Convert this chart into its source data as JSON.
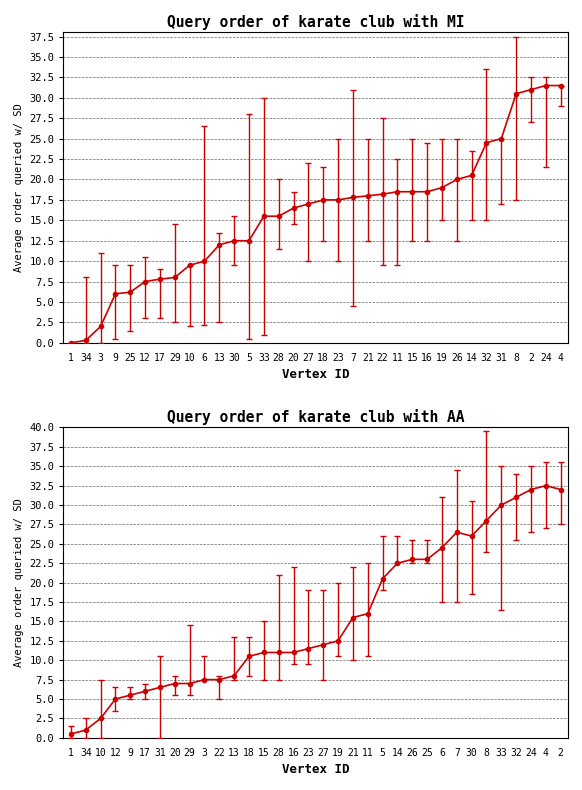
{
  "title1": "Query order of karate club with MI",
  "title2": "Query order of karate club with AA",
  "xlabel": "Vertex ID",
  "ylabel": "Average order queried w/ SD",
  "mi_labels": [
    "1",
    "34",
    "3",
    "9",
    "25",
    "12",
    "17",
    "29",
    "10",
    "6",
    "13",
    "30",
    "5",
    "33",
    "28",
    "20",
    "27",
    "18",
    "23",
    "7",
    "21",
    "22",
    "11",
    "15",
    "16",
    "19",
    "26",
    "14",
    "32",
    "31",
    "8",
    "2",
    "24",
    "4"
  ],
  "mi_means": [
    0.0,
    0.3,
    2.0,
    6.0,
    6.2,
    7.5,
    7.8,
    8.0,
    9.5,
    10.0,
    12.0,
    12.5,
    12.5,
    15.5,
    15.5,
    16.5,
    17.0,
    17.5,
    17.5,
    17.8,
    18.0,
    18.2,
    18.5,
    18.5,
    18.5,
    19.0,
    20.0,
    20.5,
    24.5,
    25.0,
    30.5,
    31.0,
    31.5,
    31.5
  ],
  "mi_lo": [
    0.0,
    0.0,
    0.0,
    0.5,
    1.5,
    3.0,
    3.0,
    2.5,
    2.0,
    2.2,
    2.5,
    9.5,
    0.5,
    1.0,
    11.5,
    14.5,
    10.0,
    12.5,
    10.0,
    4.5,
    12.5,
    9.5,
    9.5,
    12.5,
    12.5,
    15.0,
    12.5,
    15.0,
    15.0,
    17.0,
    17.5,
    27.0,
    21.5,
    29.0
  ],
  "mi_hi": [
    0.0,
    8.0,
    11.0,
    9.5,
    9.5,
    10.5,
    9.0,
    14.5,
    9.5,
    26.5,
    13.5,
    15.5,
    28.0,
    30.0,
    20.0,
    18.5,
    22.0,
    21.5,
    25.0,
    31.0,
    25.0,
    27.5,
    22.5,
    25.0,
    24.5,
    25.0,
    25.0,
    23.5,
    33.5,
    25.0,
    37.5,
    32.5,
    32.5,
    31.5
  ],
  "aa_labels": [
    "1",
    "34",
    "10",
    "12",
    "9",
    "17",
    "31",
    "20",
    "29",
    "3",
    "22",
    "13",
    "18",
    "15",
    "28",
    "16",
    "23",
    "27",
    "19",
    "21",
    "11",
    "5",
    "14",
    "26",
    "25",
    "6",
    "7",
    "30",
    "8",
    "33",
    "32",
    "24",
    "4",
    "2"
  ],
  "aa_means": [
    0.5,
    1.0,
    2.5,
    5.0,
    5.5,
    6.0,
    6.5,
    7.0,
    7.0,
    7.5,
    7.5,
    8.0,
    10.5,
    11.0,
    11.0,
    11.0,
    11.5,
    12.0,
    12.5,
    15.5,
    16.0,
    20.5,
    22.5,
    23.0,
    23.0,
    24.5,
    26.5,
    26.0,
    28.0,
    30.0,
    31.0,
    32.0,
    32.5,
    32.0
  ],
  "aa_lo": [
    0.0,
    0.0,
    0.0,
    3.5,
    5.0,
    5.0,
    0.0,
    5.5,
    5.5,
    7.5,
    5.0,
    7.5,
    8.0,
    7.5,
    7.5,
    9.5,
    9.5,
    7.5,
    10.5,
    10.0,
    10.5,
    19.0,
    22.5,
    22.5,
    22.5,
    17.5,
    17.5,
    18.5,
    24.0,
    16.5,
    25.5,
    26.5,
    27.0,
    27.5
  ],
  "aa_hi": [
    1.5,
    2.5,
    7.5,
    6.5,
    6.5,
    7.0,
    10.5,
    8.0,
    14.5,
    10.5,
    8.0,
    13.0,
    13.0,
    15.0,
    21.0,
    22.0,
    19.0,
    19.0,
    20.0,
    22.0,
    22.5,
    26.0,
    26.0,
    25.5,
    25.5,
    31.0,
    34.5,
    30.5,
    39.5,
    35.0,
    34.0,
    35.0,
    35.5,
    35.5
  ],
  "line_color": "#cc0000",
  "mi_ylim": [
    0.0,
    38.0
  ],
  "mi_yticks": [
    0.0,
    2.5,
    5.0,
    7.5,
    10.0,
    12.5,
    15.0,
    17.5,
    20.0,
    22.5,
    25.0,
    27.5,
    30.0,
    32.5,
    35.0,
    37.5
  ],
  "aa_ylim": [
    0.0,
    40.0
  ],
  "aa_yticks": [
    0.0,
    2.5,
    5.0,
    7.5,
    10.0,
    12.5,
    15.0,
    17.5,
    20.0,
    22.5,
    25.0,
    27.5,
    30.0,
    32.5,
    35.0,
    37.5,
    40.0
  ]
}
